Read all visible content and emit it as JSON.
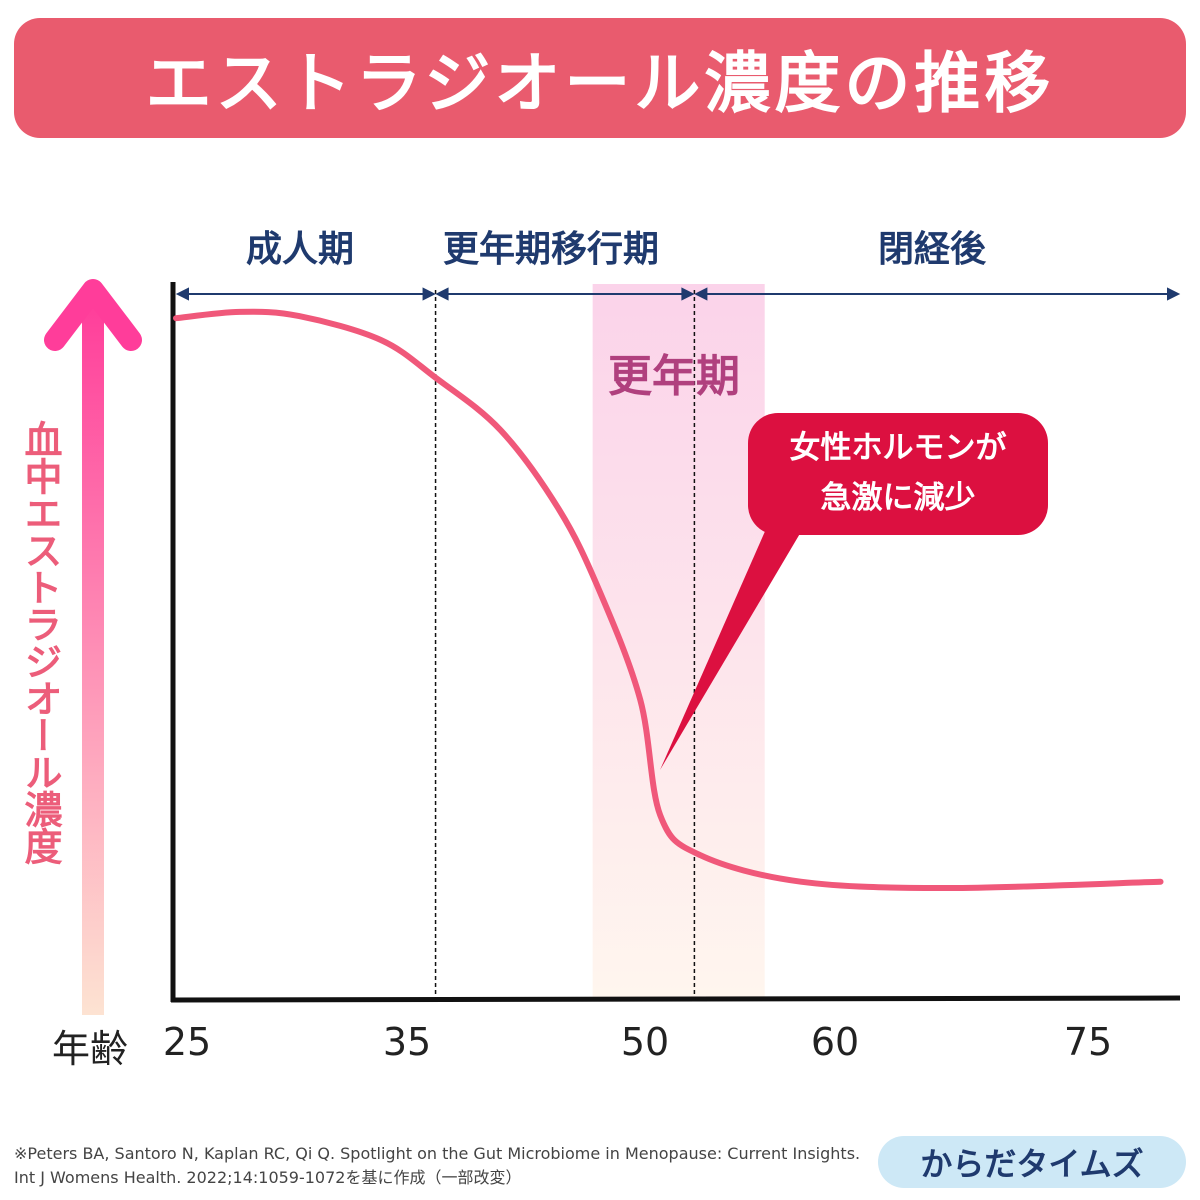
{
  "title": "エストラジオール濃度の推移",
  "chart_data": {
    "type": "line",
    "title": "エストラジオール濃度の推移",
    "xlabel": "年齢",
    "ylabel": "血中エストラジオール濃度",
    "x_ticks": [
      25,
      35,
      50,
      60,
      75
    ],
    "y_ticks": [],
    "grid": false,
    "series": [
      {
        "x": [
          24.5,
          27.4,
          30.1,
          33.8,
          36.8,
          40.9,
          44.6,
          47.1,
          49.7,
          50.8,
          52.9,
          58.2,
          66.8,
          79.3
        ],
        "y": [
          97.4,
          98.3,
          97.7,
          94.3,
          88.9,
          81.4,
          70,
          58.6,
          42.9,
          26.4,
          20.7,
          16.9,
          16,
          16.9
        ]
      }
    ],
    "line_color": "#f0587a",
    "phases": [
      {
        "label": "成人期"
      },
      {
        "label": "更年期移行期"
      },
      {
        "label": "閉経後"
      }
    ],
    "phase_boundaries": [
      36.8,
      52.6
    ],
    "highlight": {
      "label": "更年期",
      "range": [
        46.7,
        56.3
      ],
      "color": "#fbd3ea"
    },
    "annotation": {
      "lines": [
        "女性ホルモンが",
        "急激に減少"
      ],
      "color": "#dc1040"
    }
  },
  "footer": {
    "citation": "※Peters BA, Santoro N, Kaplan RC, Qi Q. Spotlight on the Gut Microbiome in Menopause: Current Insights. Int J Womens Health. 2022;14:1059-1072を基に作成（一部改変）",
    "brand": "からだタイムズ"
  }
}
